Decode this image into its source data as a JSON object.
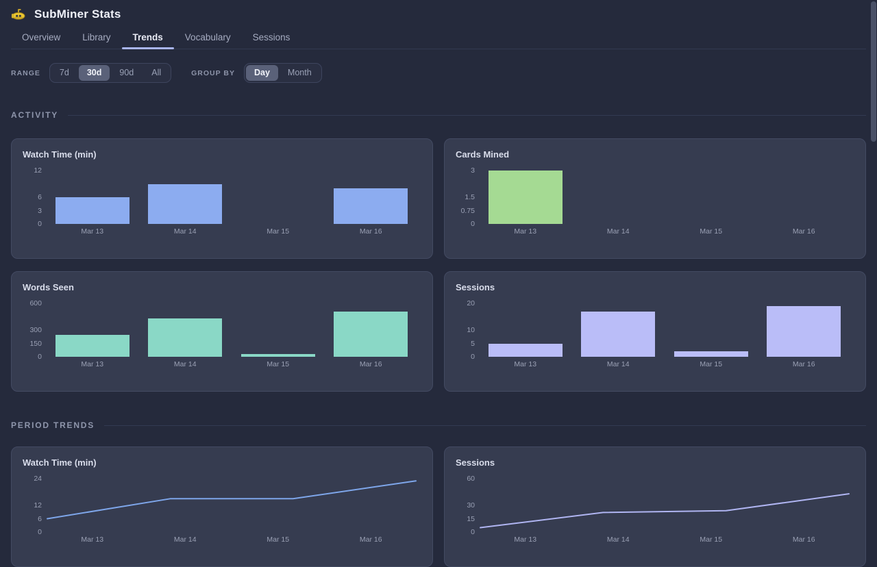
{
  "header": {
    "title": "SubMiner Stats",
    "logo_icon": "submarine-icon"
  },
  "tabs": [
    {
      "label": "Overview",
      "active": false
    },
    {
      "label": "Library",
      "active": false
    },
    {
      "label": "Trends",
      "active": true
    },
    {
      "label": "Vocabulary",
      "active": false
    },
    {
      "label": "Sessions",
      "active": false
    }
  ],
  "controls": {
    "range": {
      "label": "RANGE",
      "options": [
        "7d",
        "30d",
        "90d",
        "All"
      ],
      "selected": "30d"
    },
    "group_by": {
      "label": "GROUP BY",
      "options": [
        "Day",
        "Month"
      ],
      "selected": "Day"
    }
  },
  "sections": [
    {
      "title": "ACTIVITY"
    },
    {
      "title": "PERIOD TRENDS"
    }
  ],
  "colors": {
    "background": "#252a3c",
    "card": "#363c50",
    "tab_underline": "#a9b5ee",
    "watch_time_bar": "#8cacf0",
    "cards_mined_bar": "#a5da93",
    "words_seen_bar": "#8ad8c6",
    "sessions_bar": "#babdf8",
    "watch_time_line": "#7ea6ea",
    "sessions_line": "#b0b5f2"
  },
  "chart_data": [
    {
      "type": "bar",
      "title": "Watch Time (min)",
      "section": "ACTIVITY",
      "categories": [
        "Mar 13",
        "Mar 14",
        "Mar 15",
        "Mar 16"
      ],
      "values": [
        6,
        9,
        0,
        8
      ],
      "ylim": [
        0,
        12
      ],
      "grid": false,
      "legend": "none",
      "yticks": [
        {
          "label": "12",
          "value": 12
        },
        {
          "label": "6",
          "value": 6
        },
        {
          "label": "3",
          "value": 3
        },
        {
          "label": "0",
          "value": 0
        }
      ],
      "color": "#8cacf0"
    },
    {
      "type": "bar",
      "title": "Cards Mined",
      "section": "ACTIVITY",
      "categories": [
        "Mar 13",
        "Mar 14",
        "Mar 15",
        "Mar 16"
      ],
      "values": [
        3,
        0,
        0,
        0
      ],
      "ylim": [
        0,
        3
      ],
      "grid": false,
      "legend": "none",
      "yticks": [
        {
          "label": "3",
          "value": 3
        },
        {
          "label": "1.5",
          "value": 1.5
        },
        {
          "label": "0.75",
          "value": 0.75
        },
        {
          "label": "0",
          "value": 0
        }
      ],
      "color": "#a5da93"
    },
    {
      "type": "bar",
      "title": "Words Seen",
      "section": "ACTIVITY",
      "categories": [
        "Mar 13",
        "Mar 14",
        "Mar 15",
        "Mar 16"
      ],
      "values": [
        245,
        430,
        30,
        510
      ],
      "ylim": [
        0,
        600
      ],
      "grid": false,
      "legend": "none",
      "yticks": [
        {
          "label": "600",
          "value": 600
        },
        {
          "label": "300",
          "value": 300
        },
        {
          "label": "150",
          "value": 150
        },
        {
          "label": "0",
          "value": 0
        }
      ],
      "color": "#8ad8c6"
    },
    {
      "type": "bar",
      "title": "Sessions",
      "section": "ACTIVITY",
      "categories": [
        "Mar 13",
        "Mar 14",
        "Mar 15",
        "Mar 16"
      ],
      "values": [
        5,
        17,
        2,
        19
      ],
      "ylim": [
        0,
        20
      ],
      "grid": false,
      "legend": "none",
      "yticks": [
        {
          "label": "20",
          "value": 20
        },
        {
          "label": "10",
          "value": 10
        },
        {
          "label": "5",
          "value": 5
        },
        {
          "label": "0",
          "value": 0
        }
      ],
      "color": "#babdf8"
    },
    {
      "type": "line",
      "title": "Watch Time (min)",
      "section": "PERIOD TRENDS",
      "categories": [
        "Mar 13",
        "Mar 14",
        "Mar 15",
        "Mar 16"
      ],
      "values": [
        6,
        15,
        15,
        23
      ],
      "ylim": [
        0,
        24
      ],
      "grid": false,
      "legend": "none",
      "yticks": [
        {
          "label": "24",
          "value": 24
        },
        {
          "label": "12",
          "value": 12
        },
        {
          "label": "6",
          "value": 6
        },
        {
          "label": "0",
          "value": 0
        }
      ],
      "color": "#7ea6ea"
    },
    {
      "type": "line",
      "title": "Sessions",
      "section": "PERIOD TRENDS",
      "categories": [
        "Mar 13",
        "Mar 14",
        "Mar 15",
        "Mar 16"
      ],
      "values": [
        5,
        22,
        24,
        43
      ],
      "ylim": [
        0,
        60
      ],
      "grid": false,
      "legend": "none",
      "yticks": [
        {
          "label": "60",
          "value": 60
        },
        {
          "label": "30",
          "value": 30
        },
        {
          "label": "15",
          "value": 15
        },
        {
          "label": "0",
          "value": 0
        }
      ],
      "color": "#b0b5f2"
    }
  ]
}
